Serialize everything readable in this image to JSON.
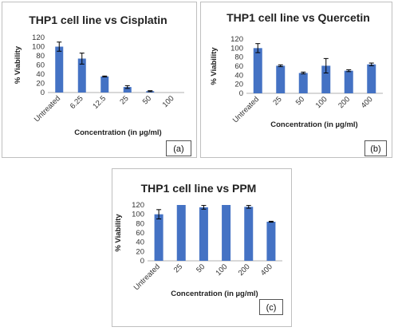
{
  "chart_data": [
    {
      "type": "bar",
      "title": "THP1 cell line vs Cisplatin",
      "xlabel": "Concentration (in µg/ml)",
      "ylabel": "% Viability",
      "ylim": [
        0,
        120
      ],
      "yticks": [
        "0",
        "20",
        "40",
        "60",
        "80",
        "100",
        "120"
      ],
      "categories": [
        "Untreated",
        "6.25",
        "12.5",
        "25",
        "50",
        "100"
      ],
      "values": [
        100,
        74,
        35,
        12,
        3,
        0
      ],
      "errors": [
        10,
        12,
        1,
        3,
        1,
        0
      ],
      "panel_label": "(a)",
      "bar_color": "#4472C4"
    },
    {
      "type": "bar",
      "title": "THP1 cell line vs Quercetin",
      "xlabel": "Concentration (in µg/ml)",
      "ylabel": "% Viability",
      "ylim": [
        0,
        120
      ],
      "yticks": [
        "0",
        "20",
        "40",
        "60",
        "80",
        "100",
        "120"
      ],
      "categories": [
        "Untreated",
        "25",
        "50",
        "100",
        "200",
        "400"
      ],
      "values": [
        100,
        61,
        45,
        61,
        50,
        64
      ],
      "errors": [
        10,
        2,
        2,
        16,
        2,
        3
      ],
      "panel_label": "(b)",
      "bar_color": "#4472C4"
    },
    {
      "type": "bar",
      "title": "THP1 cell line vs PPM",
      "xlabel": "Concentration (in µg/ml)",
      "ylabel": "% Viability",
      "ylim": [
        0,
        120
      ],
      "yticks": [
        "0",
        "20",
        "40",
        "60",
        "80",
        "100",
        "120"
      ],
      "categories": [
        "Untreated",
        "25",
        "50",
        "100",
        "200",
        "400"
      ],
      "values": [
        100,
        120,
        115,
        120,
        116,
        84
      ],
      "errors": [
        10,
        0,
        4,
        0,
        3,
        1
      ],
      "panel_label": "(c)",
      "bar_color": "#4472C4"
    }
  ]
}
